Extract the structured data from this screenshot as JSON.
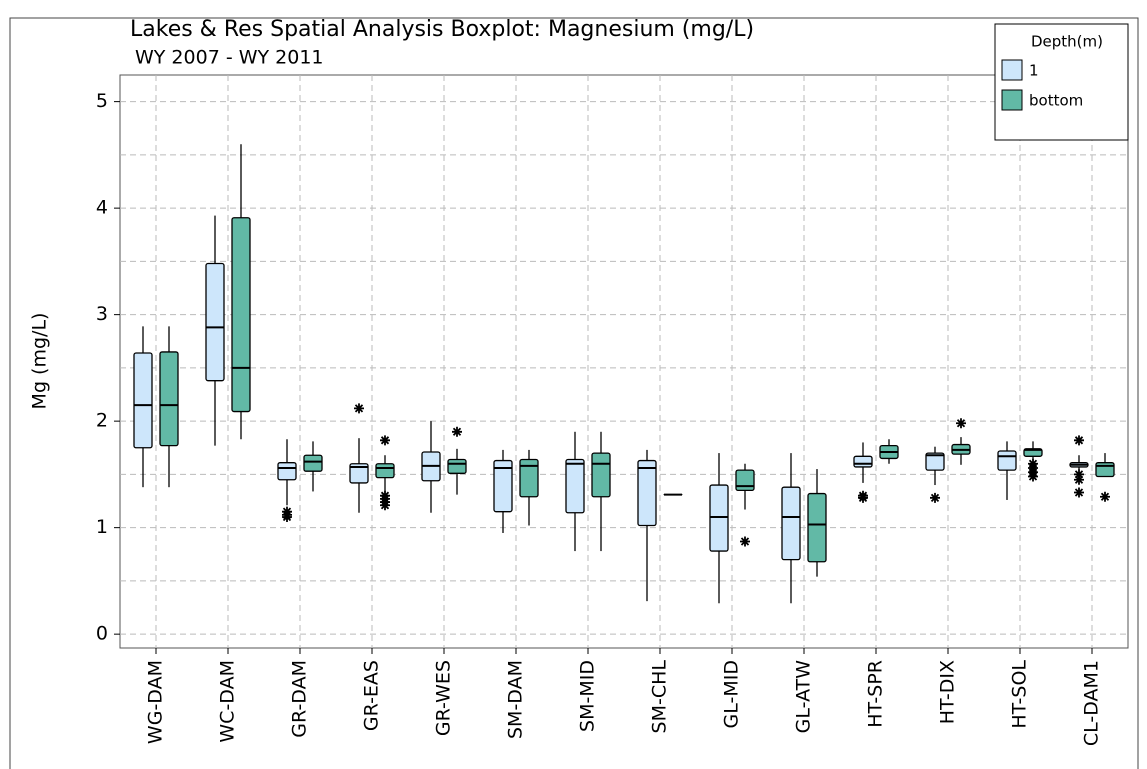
{
  "chart_data": {
    "type": "boxplot",
    "title": "Lakes & Res Spatial Analysis Boxplot: Magnesium (mg/L)",
    "subtitle": "WY 2007 - WY 2011",
    "y_label": "Mg (mg/L)",
    "legend_title": "Depth(m)",
    "legend_position": "top-right",
    "grid": true,
    "ylim": [
      -0.13,
      5.25
    ],
    "yticks": [
      0,
      1,
      2,
      3,
      4,
      5
    ],
    "ygrid_minor": [
      0.5,
      1.5,
      2.5,
      3.5,
      4.5
    ],
    "categories": [
      "WG-DAM",
      "WC-DAM",
      "GR-DAM",
      "GR-EAS",
      "GR-WES",
      "SM-DAM",
      "SM-MID",
      "SM-CHL",
      "GL-MID",
      "GL-ATW",
      "HT-SPR",
      "HT-DIX",
      "HT-SOL",
      "CL-DAM1"
    ],
    "series": [
      {
        "name": "1",
        "color": "#cde6fb",
        "boxes": [
          {
            "min": 1.38,
            "q1": 1.75,
            "median": 2.15,
            "q3": 2.64,
            "max": 2.89,
            "outliers": []
          },
          {
            "min": 1.77,
            "q1": 2.38,
            "median": 2.88,
            "q3": 3.48,
            "max": 3.93,
            "outliers": []
          },
          {
            "min": 1.21,
            "q1": 1.45,
            "median": 1.56,
            "q3": 1.61,
            "max": 1.83,
            "outliers": [
              1.15,
              1.12,
              1.1
            ]
          },
          {
            "min": 1.14,
            "q1": 1.42,
            "median": 1.57,
            "q3": 1.6,
            "max": 1.84,
            "outliers": [
              2.12
            ]
          },
          {
            "min": 1.14,
            "q1": 1.44,
            "median": 1.58,
            "q3": 1.71,
            "max": 2.0,
            "outliers": []
          },
          {
            "min": 0.95,
            "q1": 1.15,
            "median": 1.56,
            "q3": 1.63,
            "max": 1.73,
            "outliers": []
          },
          {
            "min": 0.78,
            "q1": 1.14,
            "median": 1.6,
            "q3": 1.64,
            "max": 1.9,
            "outliers": []
          },
          {
            "min": 0.31,
            "q1": 1.02,
            "median": 1.56,
            "q3": 1.63,
            "max": 1.73,
            "outliers": []
          },
          {
            "min": 0.29,
            "q1": 0.78,
            "median": 1.1,
            "q3": 1.4,
            "max": 1.7,
            "outliers": []
          },
          {
            "min": 0.29,
            "q1": 0.7,
            "median": 1.1,
            "q3": 1.38,
            "max": 1.7,
            "outliers": []
          },
          {
            "min": 1.42,
            "q1": 1.57,
            "median": 1.6,
            "q3": 1.67,
            "max": 1.8,
            "outliers": [
              1.3,
              1.28
            ]
          },
          {
            "min": 1.4,
            "q1": 1.54,
            "median": 1.68,
            "q3": 1.7,
            "max": 1.76,
            "outliers": [
              1.28
            ]
          },
          {
            "min": 1.26,
            "q1": 1.54,
            "median": 1.67,
            "q3": 1.72,
            "max": 1.81,
            "outliers": []
          },
          {
            "min": 1.54,
            "q1": 1.57,
            "median": 1.59,
            "q3": 1.61,
            "max": 1.68,
            "outliers": [
              1.82,
              1.5,
              1.45,
              1.33
            ]
          }
        ]
      },
      {
        "name": "bottom",
        "color": "#62b9a6",
        "boxes": [
          {
            "min": 1.38,
            "q1": 1.77,
            "median": 2.15,
            "q3": 2.65,
            "max": 2.89,
            "outliers": []
          },
          {
            "min": 1.83,
            "q1": 2.09,
            "median": 2.5,
            "q3": 3.91,
            "max": 4.6,
            "outliers": []
          },
          {
            "min": 1.34,
            "q1": 1.53,
            "median": 1.62,
            "q3": 1.68,
            "max": 1.81,
            "outliers": []
          },
          {
            "min": 1.34,
            "q1": 1.47,
            "median": 1.56,
            "q3": 1.6,
            "max": 1.68,
            "outliers": [
              1.82,
              1.3,
              1.27,
              1.24,
              1.21
            ]
          },
          {
            "min": 1.31,
            "q1": 1.51,
            "median": 1.6,
            "q3": 1.64,
            "max": 1.74,
            "outliers": [
              1.9
            ]
          },
          {
            "min": 1.02,
            "q1": 1.29,
            "median": 1.58,
            "q3": 1.64,
            "max": 1.73,
            "outliers": []
          },
          {
            "min": 0.78,
            "q1": 1.29,
            "median": 1.6,
            "q3": 1.7,
            "max": 1.9,
            "outliers": []
          },
          {
            "min": 1.31,
            "q1": 1.31,
            "median": 1.31,
            "q3": 1.31,
            "max": 1.31,
            "outliers": []
          },
          {
            "min": 1.17,
            "q1": 1.35,
            "median": 1.39,
            "q3": 1.54,
            "max": 1.6,
            "outliers": [
              0.87
            ]
          },
          {
            "min": 0.54,
            "q1": 0.68,
            "median": 1.03,
            "q3": 1.32,
            "max": 1.55,
            "outliers": []
          },
          {
            "min": 1.6,
            "q1": 1.65,
            "median": 1.71,
            "q3": 1.77,
            "max": 1.83,
            "outliers": []
          },
          {
            "min": 1.59,
            "q1": 1.69,
            "median": 1.73,
            "q3": 1.78,
            "max": 1.85,
            "outliers": [
              1.98
            ]
          },
          {
            "min": 1.64,
            "q1": 1.67,
            "median": 1.73,
            "q3": 1.74,
            "max": 1.81,
            "outliers": [
              1.6,
              1.56,
              1.52,
              1.48
            ]
          },
          {
            "min": 1.48,
            "q1": 1.48,
            "median": 1.58,
            "q3": 1.61,
            "max": 1.7,
            "outliers": [
              1.29
            ]
          }
        ]
      }
    ]
  }
}
